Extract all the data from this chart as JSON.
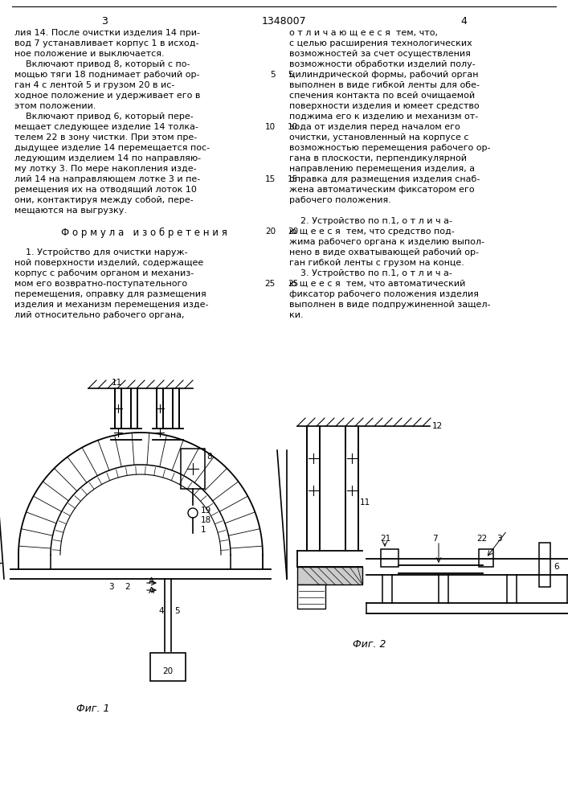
{
  "bg_color": "#ffffff",
  "page_num_left": "3",
  "page_num_center": "1348007",
  "page_num_right": "4",
  "fig1_label": "Фиг. 1",
  "fig2_label": "Фиг. 2",
  "left_col_lines": [
    "лия 14. После очистки изделия 14 при-",
    "вод 7 устанавливает корпус 1 в исход-",
    "ное положение и выключается.",
    "    Включают привод 8, который с по-",
    "мощью тяги 18 поднимает рабочий ор-",
    "ган 4 с лентой 5 и грузом 20 в ис-",
    "ходное положение и удерживает его в",
    "этом положении.",
    "    Включают привод 6, который пере-",
    "мещает следующее изделие 14 толка-",
    "телем 22 в зону чистки. При этом пре-",
    "дыдущее изделие 14 перемещается пос-",
    "ледующим изделием 14 по направляю-",
    "му лотку 3. По мере накопления изде-",
    "лий 14 на направляющем лотке 3 и пе-",
    "ремещения их на отводящий лоток 10",
    "они, контактируя между собой, пере-",
    "мещаются на выгрузку.",
    "",
    "Ф о р м у л а   и з о б р е т е н и я",
    "",
    "    1. Устройство для очистки наруж-",
    "ной поверхности изделий, содержащее",
    "корпус с рабочим органом и механиз-",
    "мом его возвратно-поступательного",
    "перемещения, оправку для размещения",
    "изделия и механизм перемещения изде-",
    "лий относительно рабочего органа,"
  ],
  "right_col_lines": [
    "о т л и ч а ю щ е е с я  тем, что,",
    "с целью расширения технологических",
    "возможностей за счет осуществления",
    "возможности обработки изделий полу-",
    "цилиндрической формы, рабочий орган",
    "выполнен в виде гибкой ленты для обе-",
    "спечения контакта по всей очищаемой",
    "поверхности изделия и юмеет средство",
    "поджима его к изделию и механизм от-",
    "вода от изделия перед началом его",
    "очистки, установленный на корпусе с",
    "возможностью перемещения рабочего ор-",
    "гана в плоскости, перпендикулярной",
    "направлению перемещения изделия, а",
    "оправка для размещения изделия снаб-",
    "жена автоматическим фиксатором его",
    "рабочего положения.",
    "",
    "    2. Устройство по п.1, о т л и ч а-",
    "ю щ е е с я  тем, что средство под-",
    "жима рабочего органа к изделию выпол-",
    "нено в виде охватывающей рабочий ор-",
    "ган гибкой ленты с грузом на конце.",
    "    3. Устройство по п.1, о т л и ч а-",
    "ю щ е е с я  тем, что автоматический",
    "фиксатор рабочего положения изделия",
    "выполнен в виде подпружиненной защел-",
    "ки."
  ]
}
